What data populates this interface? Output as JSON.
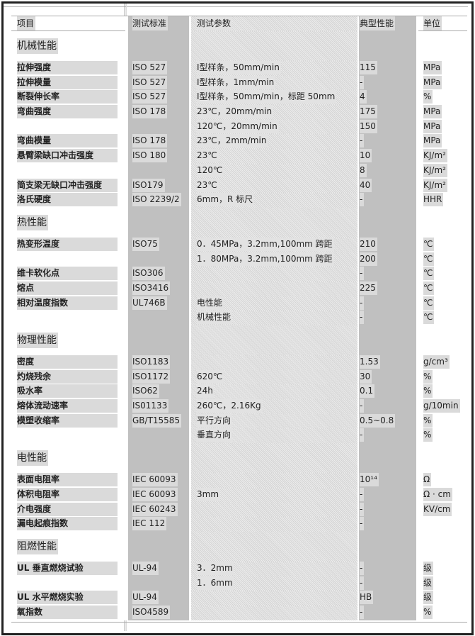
{
  "header": {
    "item": "项目",
    "standard": "测试标准",
    "params": "测试参数",
    "typical": "典型性能",
    "unit": "单位"
  },
  "rows": [
    {
      "section": "机械性能"
    },
    {
      "item": "拉伸强度",
      "standard": "ISO 527",
      "params": "Ⅰ型样条，50mm/min",
      "typical": "115",
      "unit": "MPa"
    },
    {
      "item": "拉伸模量",
      "standard": "ISO 527",
      "params": "Ⅰ型样条，1mm/min",
      "typical": "-",
      "unit": "MPa"
    },
    {
      "item": "断裂伸长率",
      "standard": "ISO 527",
      "params": "Ⅰ型样条，50mm/min，标距 50mm",
      "typical": "4",
      "unit": "%"
    },
    {
      "item": "弯曲强度",
      "standard": "ISO 178",
      "params": "23℃，20mm/min",
      "typical": "175",
      "unit": "MPa"
    },
    {
      "item": "",
      "standard": "",
      "params": "120℃，20mm/min",
      "typical": "150",
      "unit": "MPa"
    },
    {
      "item": "弯曲模量",
      "standard": "ISO 178",
      "params": "23℃，2mm/min",
      "typical": "-",
      "unit": "MPa"
    },
    {
      "item": "悬臂梁缺口冲击强度",
      "standard": "ISO 180",
      "params": "23℃",
      "typical": "10",
      "unit": "KJ/m²"
    },
    {
      "item": "",
      "standard": "",
      "params": "120℃",
      "typical": "8",
      "unit": "KJ/m²"
    },
    {
      "item": "简支梁无缺口冲击强度",
      "standard": "ISO179",
      "params": "23℃",
      "typical": "40",
      "unit": "KJ/m²"
    },
    {
      "item": "洛氏硬度",
      "standard": "ISO 2239/2",
      "params": "6mm，R 标尺",
      "typical": "-",
      "unit": "HHR"
    },
    {
      "section": "热性能"
    },
    {
      "item": "热变形温度",
      "standard": "ISO75",
      "params": "0．45MPa，3.2mm,100mm 跨距",
      "typical": "210",
      "unit": "℃"
    },
    {
      "item": "",
      "standard": "",
      "params": "1．80MPa，3.2mm,100mm 跨距",
      "typical": "200",
      "unit": "℃"
    },
    {
      "item": "维卡软化点",
      "standard": "ISO306",
      "params": "",
      "typical": "-",
      "unit": "℃"
    },
    {
      "item": "熔点",
      "standard": "ISO3416",
      "params": "",
      "typical": "225",
      "unit": "℃"
    },
    {
      "item": "相对温度指数",
      "standard": "UL746B",
      "params": "电性能",
      "typical": "-",
      "unit": "℃"
    },
    {
      "item": "",
      "standard": "",
      "params": "机械性能",
      "typical": "-",
      "unit": "℃"
    },
    {
      "section": "物理性能"
    },
    {
      "item": "密度",
      "standard": "ISO1183",
      "params": "",
      "typical": "1.53",
      "unit": "g/cm³"
    },
    {
      "item": "灼烧残余",
      "standard": "ISO1172",
      "params": "620℃",
      "typical": "30",
      "unit": "%"
    },
    {
      "item": "吸水率",
      "standard": "ISO62",
      "params": "24h",
      "typical": "0.1",
      "unit": "%"
    },
    {
      "item": "熔体流动速率",
      "standard": "IS01133",
      "params": "260℃，2.16Kg",
      "typical": "-",
      "unit": "g/10min"
    },
    {
      "item": "模塑收缩率",
      "standard": "GB/T15585",
      "params": "平行方向",
      "typical": "0.5~0.8",
      "unit": "%"
    },
    {
      "item": "",
      "standard": "",
      "params": "垂直方向",
      "typical": "-",
      "unit": "%"
    },
    {
      "section": "电性能"
    },
    {
      "item": "表面电阻率",
      "standard": "IEC 60093",
      "params": "",
      "typical": "10¹⁴",
      "unit": "Ω"
    },
    {
      "item": "体积电阻率",
      "standard": "IEC 60093",
      "params": "3mm",
      "typical": "-",
      "unit": "Ω · cm"
    },
    {
      "item": "介电强度",
      "standard": "IEC 60243",
      "params": "",
      "typical": "-",
      "unit": "KV/cm"
    },
    {
      "item": "漏电起痕指数",
      "standard": "IEC 112",
      "params": "",
      "typical": "-",
      "unit": ""
    },
    {
      "section": "阻燃性能"
    },
    {
      "item": "UL 垂直燃烧试验",
      "standard": "UL-94",
      "params": "3．2mm",
      "typical": "-",
      "unit": "级"
    },
    {
      "item": "",
      "standard": "",
      "params": "1．6mm",
      "typical": "-",
      "unit": "级"
    },
    {
      "item": "UL 水平燃烧实验",
      "standard": "UL-94",
      "params": "",
      "typical": "HB",
      "unit": "级"
    },
    {
      "item": "氧指数",
      "standard": "ISO4589",
      "params": "",
      "typical": "-",
      "unit": "%"
    }
  ]
}
